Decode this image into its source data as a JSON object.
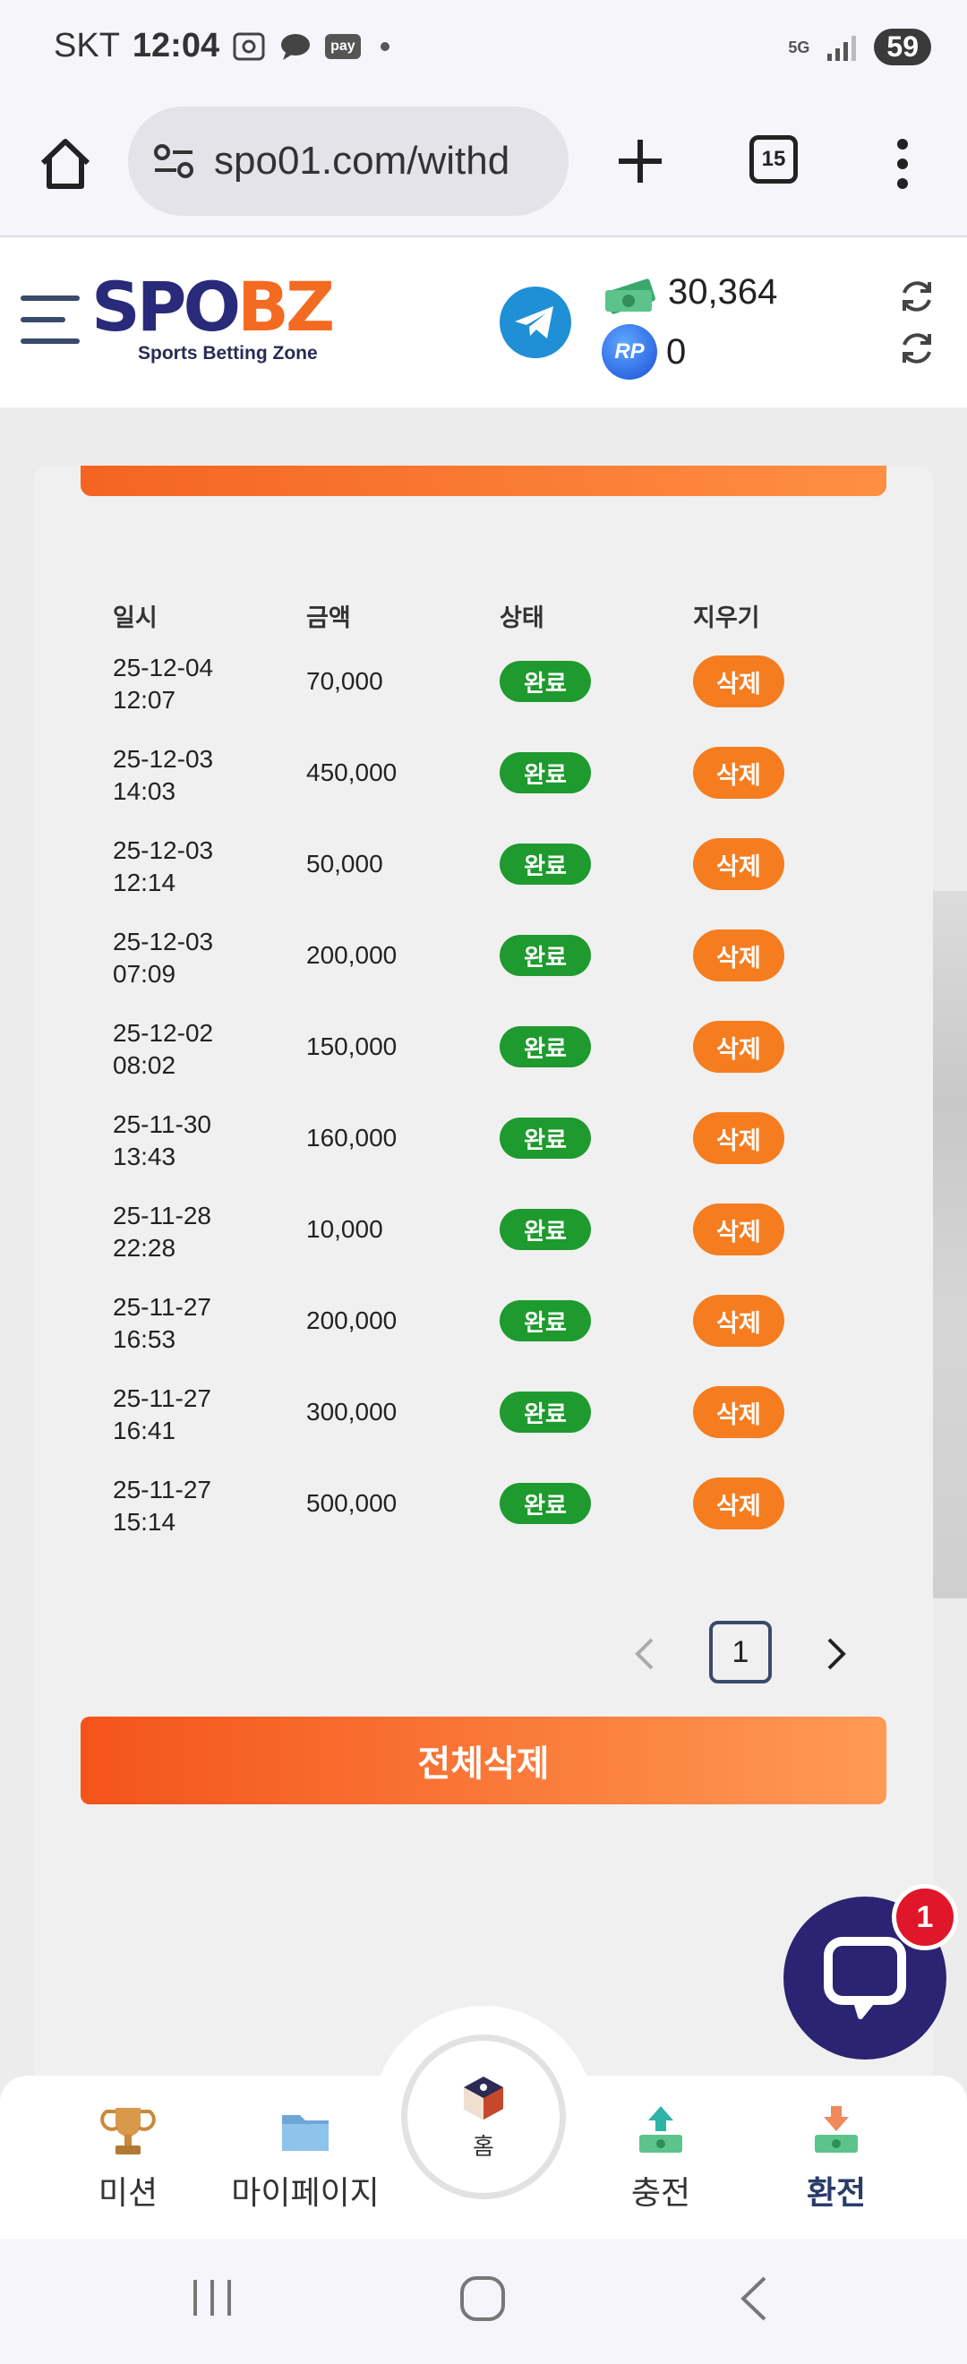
{
  "status_bar": {
    "carrier": "SKT",
    "time": "12:04",
    "pay_label": "pay",
    "network": "5G",
    "battery": "59"
  },
  "browser": {
    "url": "spo01.com/withd",
    "tab_count": "15"
  },
  "header": {
    "logo_left": "SPO",
    "logo_right": "BZ",
    "logo_tagline": "Sports Betting Zone",
    "balance": "30,364",
    "rp_label": "RP",
    "rp_points": "0"
  },
  "table": {
    "headers": {
      "date": "일시",
      "amount": "금액",
      "status": "상태",
      "delete": "지우기"
    },
    "rows": [
      {
        "date": "25-12-04",
        "time": "12:07",
        "amount": "70,000",
        "status": "완료",
        "action": "삭제"
      },
      {
        "date": "25-12-03",
        "time": "14:03",
        "amount": "450,000",
        "status": "완료",
        "action": "삭제"
      },
      {
        "date": "25-12-03",
        "time": "12:14",
        "amount": "50,000",
        "status": "완료",
        "action": "삭제"
      },
      {
        "date": "25-12-03",
        "time": "07:09",
        "amount": "200,000",
        "status": "완료",
        "action": "삭제"
      },
      {
        "date": "25-12-02",
        "time": "08:02",
        "amount": "150,000",
        "status": "완료",
        "action": "삭제"
      },
      {
        "date": "25-11-30",
        "time": "13:43",
        "amount": "160,000",
        "status": "완료",
        "action": "삭제"
      },
      {
        "date": "25-11-28",
        "time": "22:28",
        "amount": "10,000",
        "status": "완료",
        "action": "삭제"
      },
      {
        "date": "25-11-27",
        "time": "16:53",
        "amount": "200,000",
        "status": "완료",
        "action": "삭제"
      },
      {
        "date": "25-11-27",
        "time": "16:41",
        "amount": "300,000",
        "status": "완료",
        "action": "삭제"
      },
      {
        "date": "25-11-27",
        "time": "15:14",
        "amount": "500,000",
        "status": "완료",
        "action": "삭제"
      }
    ]
  },
  "pagination": {
    "current": "1"
  },
  "delete_all_label": "전체삭제",
  "chat": {
    "badge": "1"
  },
  "bottom_nav": {
    "mission": "미션",
    "mypage": "마이페이지",
    "home": "홈",
    "deposit": "충전",
    "withdraw": "환전"
  },
  "colors": {
    "accent": "#f57d1f",
    "status_done": "#1e9a2e",
    "brand_navy": "#2a2a7a",
    "chat": "#2c2373"
  }
}
